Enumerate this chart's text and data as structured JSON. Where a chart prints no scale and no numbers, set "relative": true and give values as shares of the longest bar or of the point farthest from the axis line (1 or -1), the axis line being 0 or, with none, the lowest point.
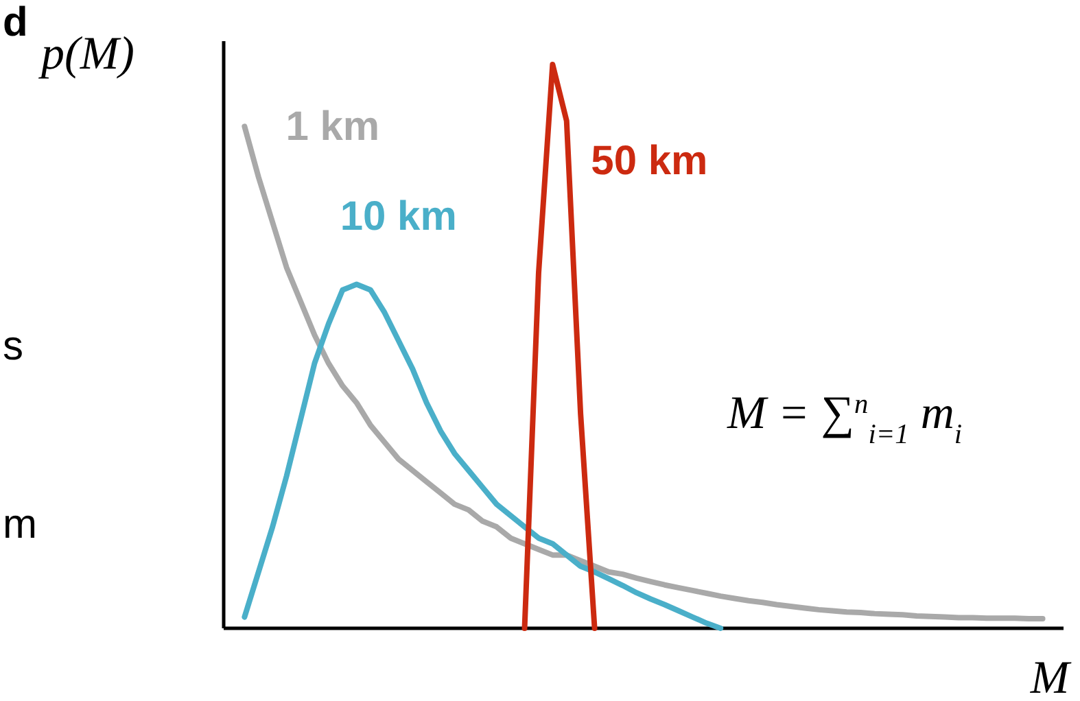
{
  "chart_data": {
    "type": "line",
    "relative": true,
    "xlabel": "M",
    "ylabel": "p(M)",
    "line_style": "solid",
    "categories": [
      null,
      null,
      null,
      null,
      null,
      null,
      null,
      null,
      null,
      null,
      null,
      null,
      null,
      null,
      null,
      null,
      null,
      null,
      null,
      null,
      null,
      null,
      null,
      null,
      null,
      null,
      null,
      null,
      null,
      null,
      null,
      null,
      null,
      null,
      null,
      null,
      null,
      null,
      null,
      null,
      null,
      null,
      null,
      null,
      null,
      null,
      null,
      null,
      null,
      null,
      null,
      null,
      null,
      null,
      null,
      null,
      null,
      null,
      null,
      null
    ],
    "series": [
      {
        "name": "1 km",
        "color": "#a9a9a9",
        "values": [
          null,
          0.89,
          0.8,
          0.72,
          0.64,
          0.58,
          0.52,
          0.47,
          0.43,
          0.4,
          0.36,
          0.33,
          0.3,
          0.28,
          0.26,
          0.24,
          0.22,
          0.21,
          0.19,
          0.18,
          0.16,
          0.15,
          0.14,
          0.13,
          0.13,
          0.12,
          0.11,
          0.1,
          0.096,
          0.089,
          0.083,
          0.077,
          0.072,
          0.067,
          0.062,
          0.057,
          0.053,
          0.049,
          0.046,
          0.042,
          0.039,
          0.036,
          0.033,
          0.031,
          0.029,
          0.028,
          0.026,
          0.025,
          0.024,
          0.022,
          0.021,
          0.02,
          0.019,
          0.019,
          0.018,
          0.018,
          0.018,
          0.017,
          0.017,
          null
        ]
      },
      {
        "name": "10 km",
        "color": "#4aafc9",
        "values": [
          null,
          0.02,
          0.1,
          0.18,
          0.27,
          0.37,
          0.47,
          0.54,
          0.6,
          0.61,
          0.6,
          0.56,
          0.51,
          0.46,
          0.4,
          0.35,
          0.31,
          0.28,
          0.25,
          0.22,
          0.2,
          0.18,
          0.16,
          0.15,
          0.13,
          0.11,
          0.1,
          0.088,
          0.076,
          0.063,
          0.052,
          0.042,
          0.031,
          0.02,
          0.009,
          0,
          null,
          null,
          null,
          null,
          null,
          null,
          null,
          null,
          null,
          null,
          null,
          null,
          null,
          null,
          null,
          null,
          null,
          null,
          null,
          null,
          null,
          null,
          null,
          null
        ]
      },
      {
        "name": "50 km",
        "color": "#cc2a10",
        "values": [
          null,
          null,
          null,
          null,
          null,
          null,
          null,
          null,
          null,
          null,
          null,
          null,
          null,
          null,
          null,
          null,
          null,
          null,
          null,
          null,
          null,
          0,
          0.63,
          1,
          0.9,
          0.38,
          0,
          null,
          null,
          null,
          null,
          null,
          null,
          null,
          null,
          null,
          null,
          null,
          null,
          null,
          null,
          null,
          null,
          null,
          null,
          null,
          null,
          null,
          null,
          null,
          null,
          null,
          null,
          null,
          null,
          null,
          null,
          null,
          null,
          null
        ]
      }
    ],
    "annotations": [
      "M = ∑$^{n}$$_{i=1}$ m$_{i}$",
      "d",
      "s",
      "m"
    ]
  }
}
